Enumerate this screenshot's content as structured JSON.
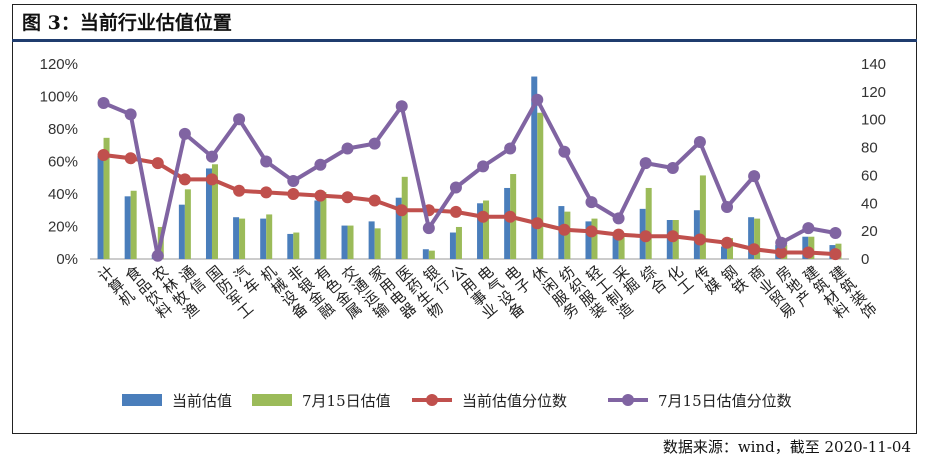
{
  "header": {
    "title": "图 3：当前行业估值位置"
  },
  "footer": {
    "source": "数据来源：wind，截至 2020-11-04"
  },
  "colors": {
    "current": "#4a7ebb",
    "prev": "#9bbb59",
    "curPct": "#c0504d",
    "prevPct": "#8064a2"
  },
  "chart_data": {
    "type": "bar+line",
    "title": "当前行业估值位置",
    "categories": [
      "计算机",
      "食品饮料",
      "农林牧渔",
      "通信",
      "国防军工",
      "汽车",
      "机械设备",
      "非银金融",
      "有色金属",
      "交通运输",
      "家用电器",
      "医药生物",
      "银行",
      "公用事业",
      "电气设备",
      "电子",
      "休闲服务",
      "纺织服装",
      "轻工制造",
      "采掘",
      "综合",
      "化工",
      "传媒",
      "钢铁",
      "商业贸易",
      "房地产",
      "建筑材料",
      "建筑装饰"
    ],
    "left_axis": {
      "min": 0,
      "max": 1.2,
      "ticks": [
        "0%",
        "20%",
        "40%",
        "60%",
        "80%",
        "100%",
        "120%"
      ]
    },
    "right_axis": {
      "min": 0,
      "max": 140,
      "ticks": [
        "0",
        "20",
        "40",
        "60",
        "80",
        "100",
        "120",
        "140"
      ]
    },
    "series": [
      {
        "name": "当前估值",
        "type": "bar",
        "axis": "right",
        "colorKey": "current",
        "values": [
          74,
          45,
          3,
          39,
          65,
          30,
          29,
          18,
          42,
          24,
          27,
          44,
          7,
          19,
          40,
          51,
          131,
          38,
          27,
          18,
          36,
          28,
          35,
          9,
          30,
          10,
          16,
          10
        ]
      },
      {
        "name": "7月15日估值",
        "type": "bar",
        "axis": "right",
        "colorKey": "prev",
        "values": [
          87,
          49,
          23,
          50,
          68,
          29,
          32,
          19,
          48,
          24,
          22,
          59,
          6,
          23,
          42,
          61,
          105,
          34,
          29,
          17,
          51,
          28,
          60,
          15,
          29,
          10,
          16,
          11
        ]
      },
      {
        "name": "当前估值分位数",
        "type": "line",
        "axis": "left",
        "colorKey": "curPct",
        "values": [
          0.64,
          0.62,
          0.59,
          0.49,
          0.49,
          0.42,
          0.41,
          0.4,
          0.39,
          0.38,
          0.36,
          0.3,
          0.3,
          0.29,
          0.26,
          0.26,
          0.22,
          0.18,
          0.17,
          0.15,
          0.14,
          0.14,
          0.12,
          0.1,
          0.06,
          0.04,
          0.04,
          0.03
        ]
      },
      {
        "name": "7月15日估值分位数",
        "type": "line",
        "axis": "left",
        "colorKey": "prevPct",
        "values": [
          0.96,
          0.89,
          0.02,
          0.77,
          0.63,
          0.86,
          0.6,
          0.48,
          0.58,
          0.68,
          0.71,
          0.94,
          0.19,
          0.44,
          0.57,
          0.68,
          0.98,
          0.66,
          0.35,
          0.25,
          0.59,
          0.56,
          0.72,
          0.32,
          0.51,
          0.1,
          0.19,
          0.16
        ]
      }
    ],
    "legend": [
      "当前估值",
      "7月15日估值",
      "当前估值分位数",
      "7月15日估值分位数"
    ],
    "legend_position": "bottom"
  }
}
